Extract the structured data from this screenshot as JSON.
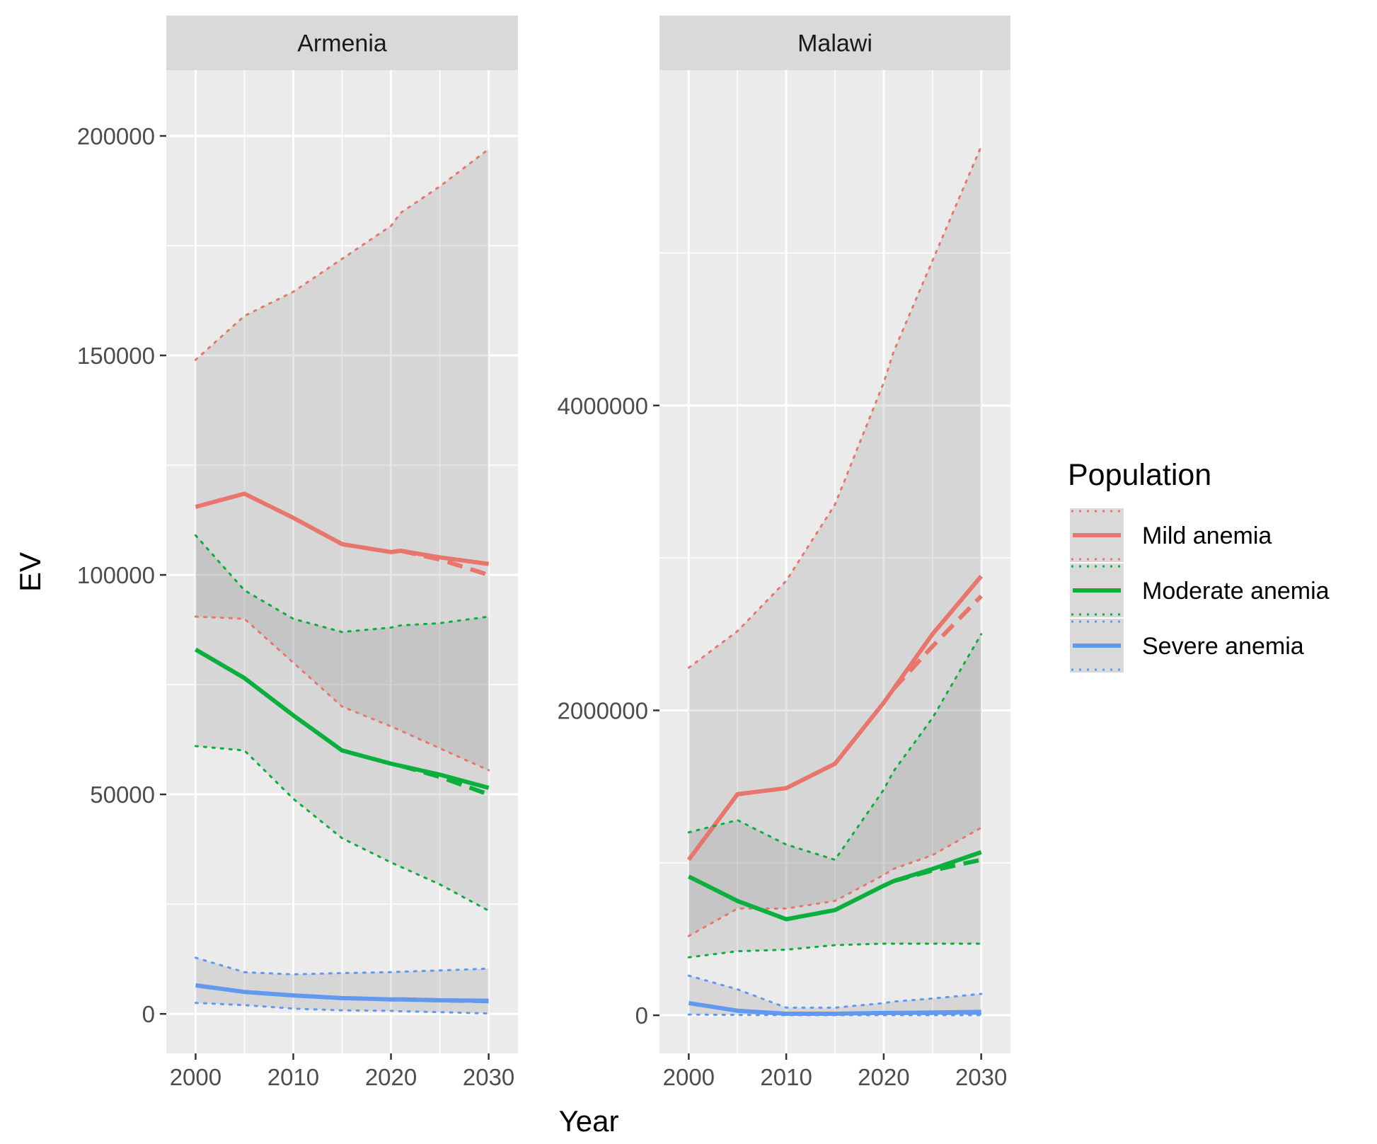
{
  "chart_data": {
    "type": "line",
    "xlabel": "Year",
    "ylabel": "EV",
    "legend": {
      "title": "Population",
      "position": "right",
      "items": [
        {
          "label": "Mild anemia",
          "color": "#E8766D"
        },
        {
          "label": "Moderate anemia",
          "color": "#0BAF3D"
        },
        {
          "label": "Severe anemia",
          "color": "#6199EE"
        }
      ]
    },
    "panels": [
      {
        "strip": "Armenia",
        "xlim": [
          1997,
          2033
        ],
        "ylim": [
          -9000,
          215000
        ],
        "xticks": [
          2000,
          2010,
          2020,
          2030
        ],
        "xtick_labels": [
          "2000",
          "2010",
          "2020",
          "2030"
        ],
        "yticks": [
          0,
          50000,
          100000,
          150000,
          200000
        ],
        "ytick_labels": [
          "0",
          "50000",
          "100000",
          "150000",
          "200000"
        ],
        "series": [
          {
            "name": "Mild anemia",
            "color": "#E8766D",
            "x": [
              2000,
              2005,
              2010,
              2015,
              2020,
              2021,
              2025,
              2030
            ],
            "solid": [
              115500,
              118500,
              113000,
              107000,
              105200,
              105500,
              104000,
              102500
            ],
            "dashed_x": [
              2021,
              2025,
              2030
            ],
            "dashed": [
              105500,
              103500,
              100000
            ],
            "lower": [
              90500,
              90000,
              80000,
              70000,
              65500,
              64500,
              60500,
              55500
            ],
            "upper": [
              149000,
              159000,
              164500,
              172000,
              179500,
              182500,
              188500,
              197000
            ]
          },
          {
            "name": "Moderate anemia",
            "color": "#0BAF3D",
            "x": [
              2000,
              2005,
              2010,
              2015,
              2020,
              2021,
              2025,
              2030
            ],
            "solid": [
              83000,
              76500,
              68000,
              60000,
              57000,
              56500,
              54500,
              51500
            ],
            "dashed_x": [
              2021,
              2025,
              2030
            ],
            "dashed": [
              56500,
              54000,
              50000
            ],
            "lower": [
              61000,
              60000,
              49000,
              40000,
              34500,
              33500,
              29500,
              23500
            ],
            "upper": [
              109000,
              96500,
              90000,
              87000,
              88000,
              88500,
              89000,
              90500
            ]
          },
          {
            "name": "Severe anemia",
            "color": "#6199EE",
            "x": [
              2000,
              2005,
              2010,
              2015,
              2020,
              2021,
              2025,
              2030
            ],
            "solid": [
              6500,
              5000,
              4200,
              3600,
              3300,
              3300,
              3100,
              3000
            ],
            "dashed_x": [
              2021,
              2025,
              2030
            ],
            "dashed": [
              3300,
              3100,
              2900
            ],
            "lower": [
              2500,
              2000,
              1200,
              800,
              700,
              600,
              400,
              100
            ],
            "upper": [
              12800,
              9500,
              9000,
              9300,
              9500,
              9600,
              9900,
              10300
            ]
          }
        ]
      },
      {
        "strip": "Malawi",
        "xlim": [
          1997,
          2033
        ],
        "ylim": [
          -250000,
          6200000
        ],
        "xticks": [
          2000,
          2010,
          2020,
          2030
        ],
        "xtick_labels": [
          "2000",
          "2010",
          "2020",
          "2030"
        ],
        "yticks": [
          0,
          2000000,
          4000000
        ],
        "ytick_labels": [
          "0",
          "2000000",
          "4000000"
        ],
        "series": [
          {
            "name": "Mild anemia",
            "color": "#E8766D",
            "x": [
              2000,
              2005,
              2010,
              2015,
              2020,
              2021,
              2025,
              2030
            ],
            "solid": [
              1020000,
              1450000,
              1490000,
              1650000,
              2050000,
              2140000,
              2500000,
              2880000
            ],
            "dashed_x": [
              2021,
              2025,
              2030
            ],
            "dashed": [
              2140000,
              2420000,
              2750000
            ],
            "lower": [
              520000,
              700000,
              700000,
              750000,
              920000,
              960000,
              1050000,
              1230000
            ],
            "upper": [
              2280000,
              2520000,
              2850000,
              3350000,
              4150000,
              4350000,
              4950000,
              5700000
            ]
          },
          {
            "name": "Moderate anemia",
            "color": "#0BAF3D",
            "x": [
              2000,
              2005,
              2010,
              2015,
              2020,
              2021,
              2025,
              2030
            ],
            "solid": [
              910000,
              750000,
              630000,
              690000,
              850000,
              880000,
              960000,
              1070000
            ],
            "dashed_x": [
              2021,
              2025,
              2030
            ],
            "dashed": [
              880000,
              950000,
              1020000
            ],
            "lower": [
              380000,
              420000,
              430000,
              460000,
              470000,
              470000,
              470000,
              470000
            ],
            "upper": [
              1200000,
              1280000,
              1120000,
              1020000,
              1480000,
              1600000,
              1950000,
              2500000
            ]
          },
          {
            "name": "Severe anemia",
            "color": "#6199EE",
            "x": [
              2000,
              2005,
              2010,
              2015,
              2020,
              2021,
              2025,
              2030
            ],
            "solid": [
              80000,
              30000,
              10000,
              10000,
              15000,
              15000,
              18000,
              22000
            ],
            "dashed_x": [
              2021,
              2025,
              2030
            ],
            "dashed": [
              15000,
              15000,
              18000
            ],
            "lower": [
              5000,
              2000,
              1000,
              1000,
              1000,
              1000,
              1000,
              1000
            ],
            "upper": [
              260000,
              170000,
              50000,
              50000,
              80000,
              90000,
              110000,
              140000
            ]
          }
        ]
      }
    ]
  }
}
